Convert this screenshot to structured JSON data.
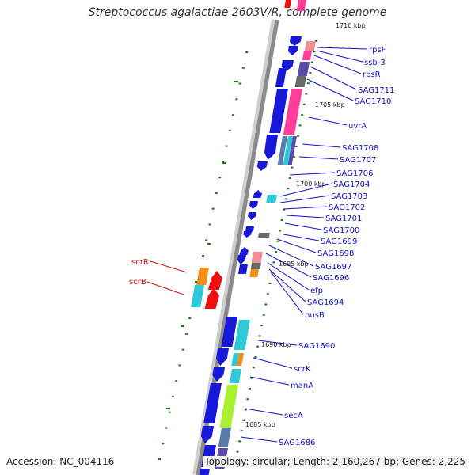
{
  "title": "Streptococcus agalactiae 2603V/R, complete genome",
  "accession": "Accession: NC_004116",
  "topology": "Topology: circular; Length: 2,160,267 bp; Genes: 2,225",
  "colors": {
    "gene_blue": "#1818d8",
    "label_blue": "#1010c8",
    "label_red": "#d01010",
    "gene_red": "#ee1010",
    "magenta": "#ff3d9a",
    "pink": "#f08f96",
    "purple": "#5a4ca8",
    "gray": "#6a6a6a",
    "cyan": "#2ec8d8",
    "orange": "#f28d18",
    "lime": "#a8f030",
    "steel": "#5a7ab0",
    "tick_green": "#1a7a1a"
  },
  "scale_labels": [
    "1710 kbp",
    "1705 kbp",
    "1700 kbp",
    "1695 kbp",
    "1690 kbp",
    "1685 kbp"
  ],
  "gene_labels_right": [
    "rpsF",
    "ssb-3",
    "rpsR",
    "SAG1711",
    "SAG1710",
    "uvrA",
    "SAG1708",
    "SAG1707",
    "SAG1706",
    "SAG1704",
    "SAG1703",
    "SAG1702",
    "SAG1701",
    "SAG1700",
    "SAG1699",
    "SAG1698",
    "SAG1697",
    "SAG1696",
    "efp",
    "SAG1694",
    "nusB",
    "SAG1690",
    "scrK",
    "manA",
    "secA",
    "SAG1686"
  ],
  "gene_labels_left": [
    "scrR",
    "scrB"
  ]
}
